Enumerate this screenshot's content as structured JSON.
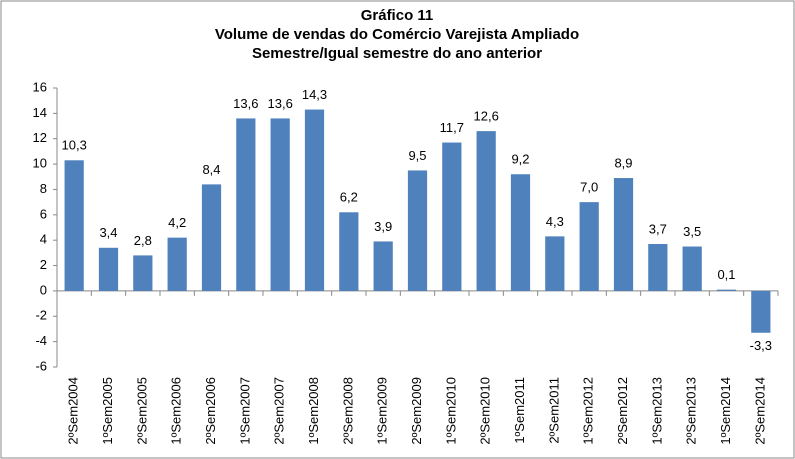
{
  "chart_data": {
    "type": "bar",
    "title": [
      "Gráfico 11",
      "Volume de vendas do Comércio Varejista Ampliado",
      "Semestre/Igual semestre do ano anterior"
    ],
    "categories": [
      "2ºSem2004",
      "1ºSem2005",
      "2ºSem2005",
      "1ºSem2006",
      "2ºSem2006",
      "1ºSem2007",
      "2ºSem2007",
      "1ºSem2008",
      "2ºSem2008",
      "1ºSem2009",
      "2ºSem2009",
      "1ºSem2010",
      "2ºSem2010",
      "1ºSem2011",
      "2ºSem2011",
      "1ºSem2012",
      "2ºSem2012",
      "1ºSem2013",
      "2ºSem2013",
      "1ºSem2014",
      "2ºSem2014"
    ],
    "values": [
      10.3,
      3.4,
      2.8,
      4.2,
      8.4,
      13.6,
      13.6,
      14.3,
      6.2,
      3.9,
      9.5,
      11.7,
      12.6,
      9.2,
      4.3,
      7.0,
      8.9,
      3.7,
      3.5,
      0.1,
      -3.3
    ],
    "value_labels": [
      "10,3",
      "3,4",
      "2,8",
      "4,2",
      "8,4",
      "13,6",
      "13,6",
      "14,3",
      "6,2",
      "3,9",
      "9,5",
      "11,7",
      "12,6",
      "9,2",
      "4,3",
      "7,0",
      "8,9",
      "3,7",
      "3,5",
      "0,1",
      "-3,3"
    ],
    "color": "#4f81bd",
    "ylim": [
      -6,
      16
    ],
    "yticks": [
      -6,
      -4,
      -2,
      0,
      2,
      4,
      6,
      8,
      10,
      12,
      14,
      16
    ],
    "grid": false
  }
}
